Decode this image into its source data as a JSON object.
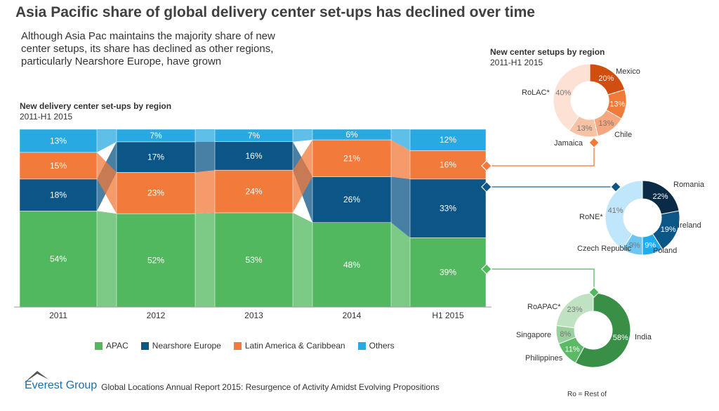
{
  "title": "Asia Pacific share of global delivery center set-ups has declined over time",
  "subtitle": "Although Asia Pac maintains the majority share of new center setups, its share has declined as other regions, particularly Nearshore Europe, have grown",
  "colors": {
    "APAC": "#52b85f",
    "Nearshore Europe": "#0b5587",
    "Latin America & Caribbean": "#f27a3a",
    "Others": "#29a9e1"
  },
  "chart_data": [
    {
      "type": "bar",
      "stacked": true,
      "title": "New delivery center set-ups by region",
      "subtitle": "2011-H1 2015",
      "categories": [
        "2011",
        "2012",
        "2013",
        "2014",
        "H1 2015"
      ],
      "series": [
        {
          "name": "APAC",
          "values": [
            54,
            52,
            53,
            48,
            39
          ]
        },
        {
          "name": "Nearshore Europe",
          "values": [
            18,
            17,
            16,
            26,
            33
          ]
        },
        {
          "name": "Latin America & Caribbean",
          "values": [
            15,
            23,
            24,
            21,
            16
          ]
        },
        {
          "name": "Others",
          "values": [
            13,
            7,
            7,
            6,
            12
          ]
        }
      ],
      "stack_order": [
        [
          "APAC",
          "Nearshore Europe",
          "Latin America & Caribbean",
          "Others"
        ],
        [
          "APAC",
          "Latin America & Caribbean",
          "Nearshore Europe",
          "Others"
        ],
        [
          "APAC",
          "Latin America & Caribbean",
          "Nearshore Europe",
          "Others"
        ],
        [
          "APAC",
          "Nearshore Europe",
          "Latin America & Caribbean",
          "Others"
        ],
        [
          "APAC",
          "Nearshore Europe",
          "Latin America & Caribbean",
          "Others"
        ]
      ],
      "value_suffix": "%",
      "legend": "bottom"
    },
    {
      "type": "pie",
      "donut": true,
      "title": "New center setups by region",
      "subtitle": "2011-H1 2015",
      "labels": [
        "Mexico",
        "",
        "Chile",
        "Jamaica",
        "RoLAC*"
      ],
      "values": [
        20,
        13,
        13,
        13,
        40
      ],
      "colors": [
        "#d04e0f",
        "#f07a3a",
        "#f5a77f",
        "#f8c2a5",
        "#fde1d4"
      ]
    },
    {
      "type": "pie",
      "donut": true,
      "labels": [
        "Romania",
        "Ireland",
        "Poland",
        "Czech Republic",
        "RoNE*"
      ],
      "values": [
        22,
        19,
        9,
        9,
        41
      ],
      "colors": [
        "#0b2a45",
        "#0b5587",
        "#22aaef",
        "#6ec6f0",
        "#bfe6fa"
      ]
    },
    {
      "type": "pie",
      "donut": true,
      "labels": [
        "India",
        "Philippines",
        "Singapore",
        "RoAPAC*"
      ],
      "values": [
        58,
        11,
        8,
        23
      ],
      "colors": [
        "#3a8f47",
        "#5cba66",
        "#98d09e",
        "#bfe3c2"
      ]
    }
  ],
  "footer": {
    "brand": "Everest Group",
    "report": "Global Locations Annual Report 2015: Resurgence of Activity Amidst Evolving Propositions",
    "note": "Ro = Rest of"
  }
}
